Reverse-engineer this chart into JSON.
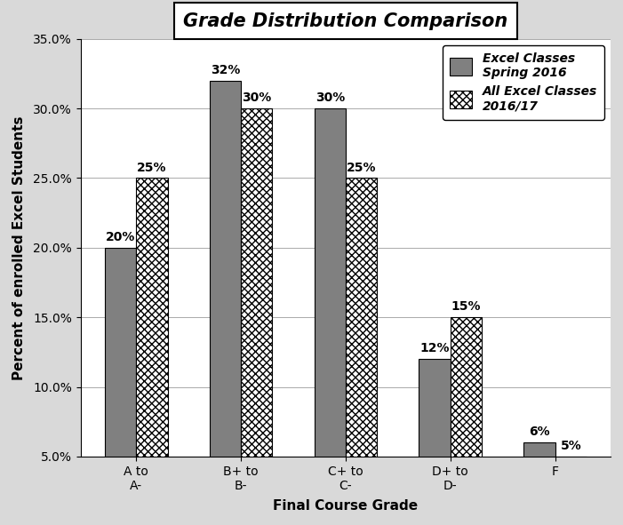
{
  "title": "Grade Distribution Comparison",
  "categories": [
    "A to\nA-",
    "B+ to\nB-",
    "C+ to\nC-",
    "D+ to\nD-",
    "F"
  ],
  "series1_label": "Excel Classes\nSpring 2016",
  "series2_label": "All Excel Classes\n2016/17",
  "series1_values": [
    20,
    32,
    30,
    12,
    6
  ],
  "series2_values": [
    25,
    30,
    25,
    15,
    5
  ],
  "series1_color": "#808080",
  "xlabel": "Final Course Grade",
  "ylabel": "Percent of enrolled Excel Students",
  "ymin": 5,
  "ymax": 35,
  "yticks": [
    5,
    10,
    15,
    20,
    25,
    30,
    35
  ],
  "ytick_labels": [
    "5.0%",
    "10.0%",
    "15.0%",
    "20.0%",
    "25.0%",
    "30.0%",
    "35.0%"
  ],
  "bar_width": 0.3,
  "title_fontsize": 15,
  "axis_label_fontsize": 11,
  "tick_fontsize": 10,
  "annotation_fontsize": 10,
  "fig_bg": "#d9d9d9",
  "plot_bg": "#ffffff"
}
